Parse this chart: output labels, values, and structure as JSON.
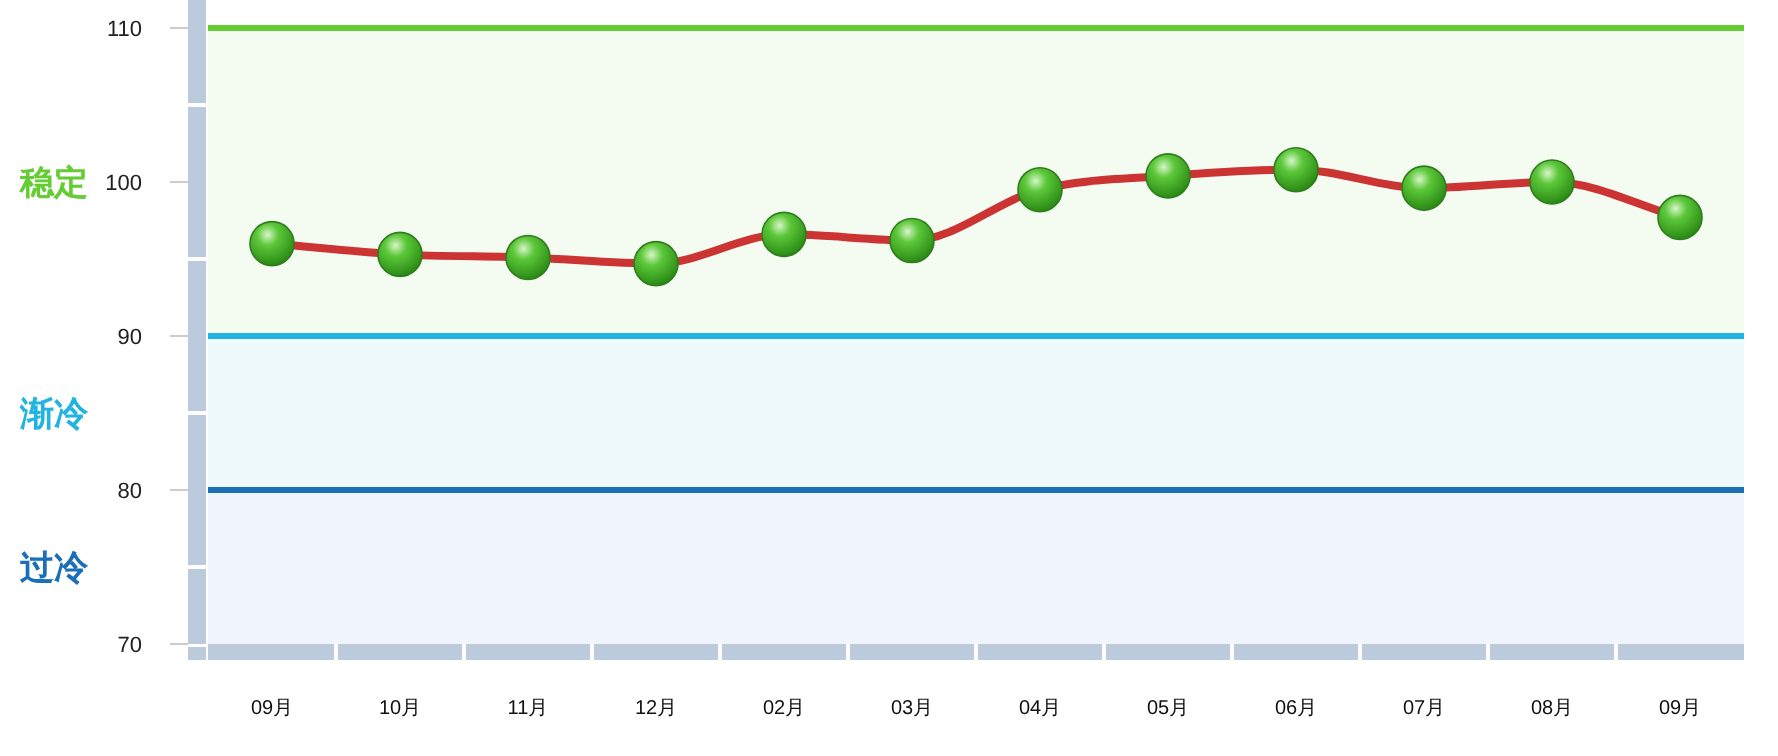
{
  "chart_data": {
    "type": "line",
    "categories": [
      "09月",
      "10月",
      "11月",
      "12月",
      "02月",
      "03月",
      "04月",
      "05月",
      "06月",
      "07月",
      "08月",
      "09月"
    ],
    "series": [
      {
        "color": "#cc3333",
        "values": [
          96.0,
          95.3,
          95.1,
          94.7,
          96.6,
          96.2,
          99.5,
          100.4,
          100.8,
          99.6,
          100.0,
          97.7
        ]
      }
    ],
    "ylim": [
      70,
      110
    ],
    "yticks": [
      70,
      {
        "value": 75,
        "label": null
      },
      80,
      {
        "value": 85,
        "label": null
      },
      90,
      {
        "value": 95,
        "label": null
      },
      100,
      {
        "value": 105,
        "label": null
      },
      110
    ],
    "bands": [
      {
        "axis": "y",
        "from": 90,
        "to": 110,
        "label": "稳定",
        "color": "#66cc33"
      },
      {
        "axis": "y",
        "from": 80,
        "to": 90,
        "label": "渐冷",
        "color": "#22b4e0"
      },
      {
        "axis": "y",
        "from": 70,
        "to": 80,
        "label": "过冷",
        "color": "#1a6fb8"
      }
    ],
    "ref_lines": [
      {
        "axis": "y",
        "value": 110,
        "color": "#66cc33"
      },
      {
        "axis": "y",
        "value": 90,
        "color": "#22b4e0"
      },
      {
        "axis": "y",
        "value": 80,
        "color": "#1a6fb8"
      }
    ],
    "marker": "circle",
    "line_style": "solid"
  }
}
